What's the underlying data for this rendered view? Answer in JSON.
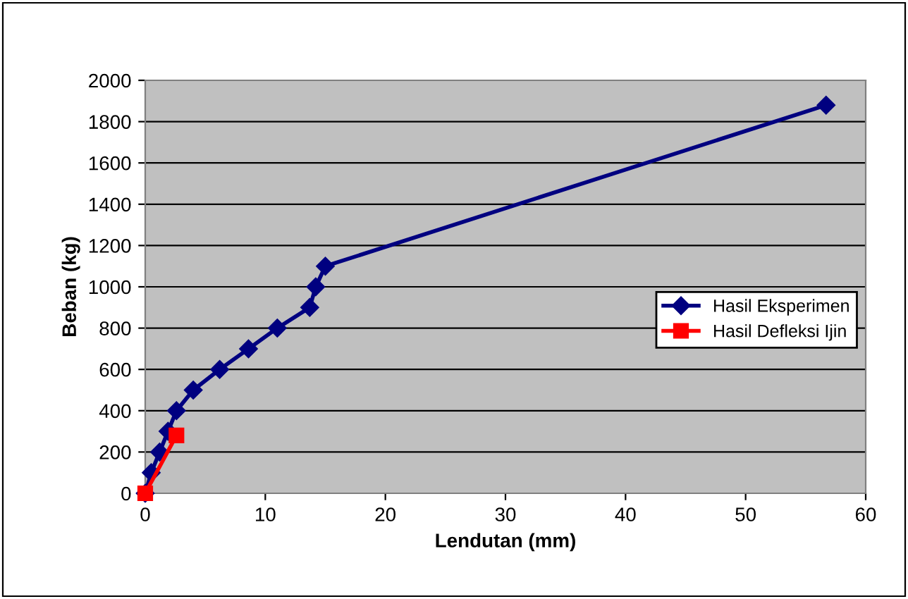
{
  "chart_data": {
    "type": "line",
    "xlabel": "Lendutan (mm)",
    "ylabel": "Beban (kg)",
    "xlim": [
      0,
      60
    ],
    "xticks": [
      0,
      10,
      20,
      30,
      40,
      50,
      60
    ],
    "ylim": [
      0,
      2000
    ],
    "yticks": [
      0,
      200,
      400,
      600,
      800,
      1000,
      1200,
      1400,
      1600,
      1800,
      2000
    ],
    "grid": "y",
    "legend": "right",
    "series": [
      {
        "name": "Hasil Eksperimen",
        "color": "#000080",
        "marker": "diamond",
        "x": [
          0,
          0.5,
          1.2,
          1.9,
          2.6,
          4.0,
          6.2,
          8.6,
          11.0,
          13.7,
          14.2,
          15.0,
          56.7
        ],
        "values": [
          0,
          100,
          200,
          300,
          400,
          500,
          600,
          700,
          800,
          900,
          1000,
          1100,
          1880
        ]
      },
      {
        "name": "Hasil Defleksi Ijin",
        "color": "#ff0000",
        "marker": "square",
        "x": [
          0,
          2.6
        ],
        "values": [
          0,
          280
        ]
      }
    ]
  }
}
